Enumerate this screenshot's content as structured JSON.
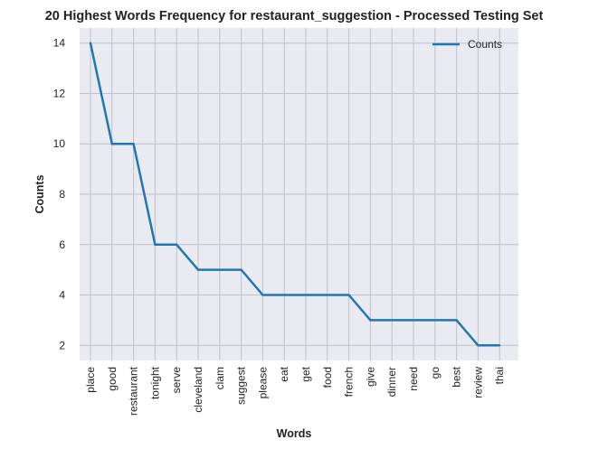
{
  "chart_data": {
    "type": "line",
    "title": "20 Highest Words Frequency for restaurant_suggestion - Processed Testing Set",
    "xlabel": "Words",
    "ylabel": "Counts",
    "categories": [
      "place",
      "good",
      "restaurant",
      "tonight",
      "serve",
      "cleveland",
      "clam",
      "suggest",
      "please",
      "eat",
      "get",
      "food",
      "french",
      "give",
      "dinner",
      "need",
      "go",
      "best",
      "review",
      "thai"
    ],
    "series": [
      {
        "name": "Counts",
        "values": [
          14,
          10,
          10,
          6,
          6,
          5,
          5,
          5,
          4,
          4,
          4,
          4,
          4,
          3,
          3,
          3,
          3,
          3,
          2,
          2
        ],
        "color": "#1f77b4"
      }
    ],
    "ylim": [
      1.4,
      14.6
    ],
    "yticks": [
      2,
      4,
      6,
      8,
      10,
      12,
      14
    ],
    "grid": true,
    "legend_position": "top-right",
    "background_color": "#eaeaf2",
    "grid_color": "#c0c0c8"
  }
}
